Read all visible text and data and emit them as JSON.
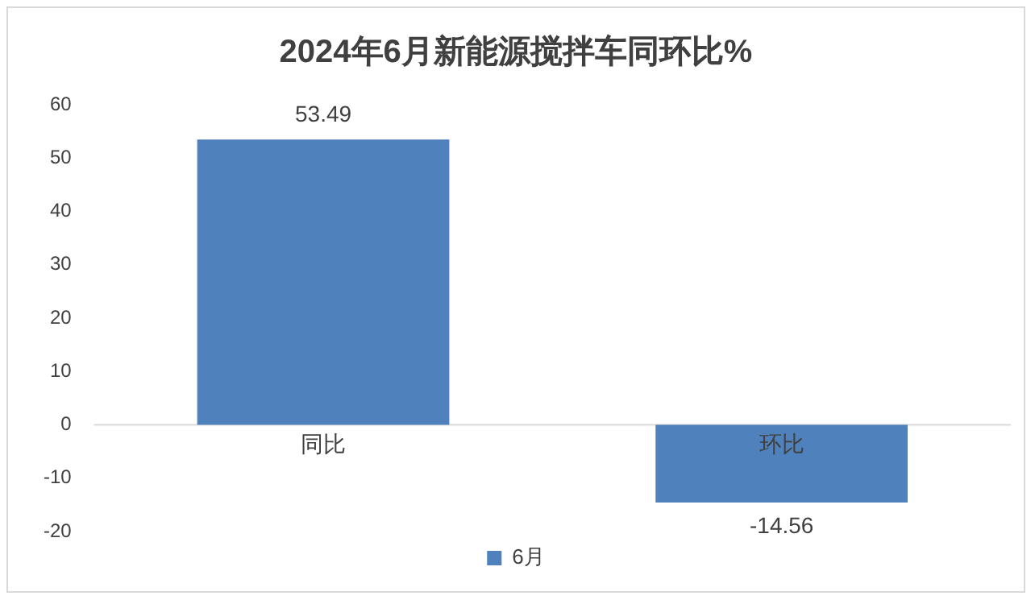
{
  "chart_data": {
    "type": "bar",
    "title": "2024年6月新能源搅拌车同环比%",
    "categories": [
      "同比",
      "环比"
    ],
    "series": [
      {
        "name": "6月",
        "color": "#4f81bd",
        "values": [
          53.49,
          -14.56
        ]
      }
    ],
    "ylim": [
      -20,
      60
    ],
    "yticks": [
      -20,
      -10,
      0,
      10,
      20,
      30,
      40,
      50,
      60
    ],
    "grid": false,
    "legend": "bottom",
    "data_labels": true
  }
}
